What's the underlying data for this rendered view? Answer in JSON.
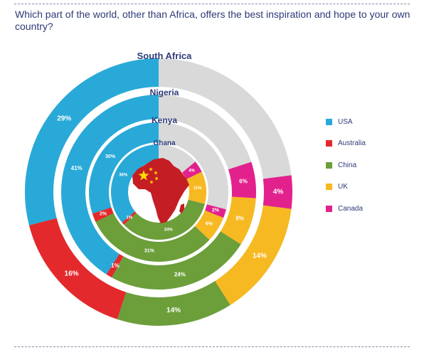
{
  "title": "Which part of the world, other than Africa, offers the best inspiration and hope to your own country?",
  "chart_data": {
    "type": "radial-bar",
    "title": "Which part of the world, other than Africa, offers the best inspiration and hope to your own country?",
    "full_scale_percent": 100,
    "legend": {
      "position": "right",
      "entries": [
        {
          "name": "USA",
          "color": "#29a9d8"
        },
        {
          "name": "Australia",
          "color": "#e3292c"
        },
        {
          "name": "China",
          "color": "#6c9e3a"
        },
        {
          "name": "UK",
          "color": "#f7b921"
        },
        {
          "name": "Canada",
          "color": "#e2218d"
        }
      ]
    },
    "series": [
      {
        "name": "South Africa",
        "values": {
          "USA": 29,
          "Australia": 16,
          "China": 14,
          "UK": 14,
          "Canada": 4
        },
        "labels": {
          "USA": "29%",
          "Australia": "16%",
          "China": "14%",
          "UK": "14%",
          "Canada": "4%"
        }
      },
      {
        "name": "Nigeria",
        "values": {
          "USA": 41,
          "Australia": 1,
          "China": 24,
          "UK": 8,
          "Canada": 6
        },
        "labels": {
          "USA": "41%",
          "Australia": "1%",
          "China": "24%",
          "UK": "8%",
          "Canada": "6%"
        }
      },
      {
        "name": "Kenya",
        "values": {
          "USA": 30,
          "Australia": 2,
          "China": 31,
          "UK": 6,
          "Canada": 2
        },
        "labels": {
          "USA": "30%",
          "Australia": "2%",
          "China": "31%",
          "UK": "6%",
          "Canada": "2%"
        }
      },
      {
        "name": "Ghana",
        "values": {
          "USA": 36,
          "Australia": 1,
          "China": 34,
          "UK": 11,
          "Canada": 4
        },
        "labels": {
          "USA": "36%",
          "Australia": "1%",
          "China": "34%",
          "UK": "11%",
          "Canada": "4%"
        }
      }
    ]
  },
  "colors": {
    "track": "#d9d9d9",
    "text": "#2e3a78",
    "africa_map": "#c41e24",
    "flag_star": "#ffde00"
  },
  "icons": {
    "center": "africa-map-china-flag-icon"
  }
}
